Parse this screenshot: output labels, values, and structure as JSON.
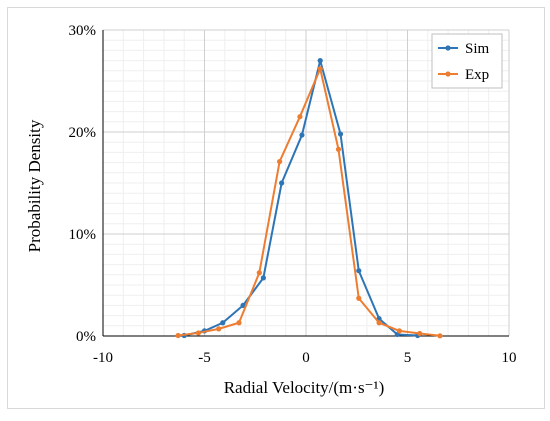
{
  "chart_data": {
    "type": "line",
    "title": "",
    "xlabel": "Radial Velocity/(m·s⁻¹)",
    "ylabel": "Probability Density",
    "xlim": [
      -10,
      10
    ],
    "ylim": [
      0,
      30
    ],
    "x_ticks": [
      -10,
      -5,
      0,
      5,
      10
    ],
    "y_ticks": [
      0,
      10,
      20,
      30
    ],
    "x_tick_labels": [
      "-10",
      "-5",
      "0",
      "5",
      "10"
    ],
    "y_tick_labels": [
      "0%",
      "10%",
      "20%",
      "30%"
    ],
    "minor_grid_step": 1,
    "grid": true,
    "legend_position": "top-right",
    "series": [
      {
        "name": "Sim",
        "color": "#2e75b6",
        "x": [
          -6.0,
          -5.0,
          -4.1,
          -3.1,
          -2.1,
          -1.2,
          -0.2,
          0.7,
          1.7,
          2.6,
          3.6,
          4.5,
          5.5
        ],
        "y": [
          0.05,
          0.5,
          1.3,
          3.0,
          5.7,
          15.0,
          19.7,
          27.0,
          19.8,
          6.4,
          1.7,
          0.15,
          0.05
        ]
      },
      {
        "name": "Exp",
        "color": "#ed7d31",
        "x": [
          -6.3,
          -5.3,
          -4.3,
          -3.3,
          -2.3,
          -1.3,
          -0.3,
          0.7,
          1.6,
          2.6,
          3.6,
          4.6,
          5.6,
          6.6
        ],
        "y": [
          0.05,
          0.3,
          0.7,
          1.3,
          6.2,
          17.1,
          21.5,
          26.2,
          18.3,
          3.7,
          1.3,
          0.5,
          0.25,
          0.02
        ]
      }
    ]
  }
}
